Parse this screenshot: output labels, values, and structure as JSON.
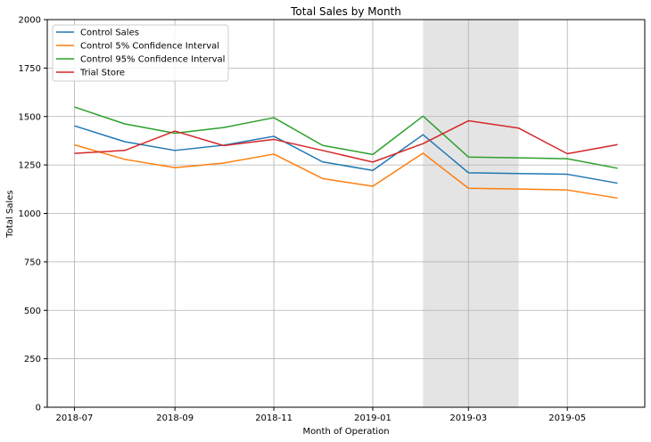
{
  "chart_data": {
    "type": "line",
    "title": "Total Sales by Month",
    "xlabel": "Month of Operation",
    "ylabel": "Total Sales",
    "x": [
      "2018-07-01",
      "2018-08-01",
      "2018-09-01",
      "2018-10-01",
      "2018-11-01",
      "2018-12-01",
      "2019-01-01",
      "2019-02-01",
      "2019-03-01",
      "2019-04-01",
      "2019-05-01",
      "2019-06-01"
    ],
    "x_ticks": [
      "2018-07",
      "2018-09",
      "2018-11",
      "2019-01",
      "2019-03",
      "2019-05"
    ],
    "ylim": [
      0,
      2000
    ],
    "y_ticks": [
      0,
      250,
      500,
      750,
      1000,
      1250,
      1500,
      1750,
      2000
    ],
    "grid": true,
    "legend_position": "top-left",
    "highlight_span": {
      "start": "2019-02-01",
      "end": "2019-04-01",
      "color": "#e4e4e4"
    },
    "series": [
      {
        "name": "Control Sales",
        "color": "#1f77b4",
        "values": [
          1452,
          1370,
          1325,
          1352,
          1398,
          1266,
          1222,
          1406,
          1210,
          1206,
          1202,
          1156
        ]
      },
      {
        "name": "Control 5% Confidence Interval",
        "color": "#ff7f0e",
        "values": [
          1354,
          1279,
          1236,
          1260,
          1306,
          1180,
          1140,
          1311,
          1130,
          1126,
          1121,
          1079
        ]
      },
      {
        "name": "Control 95% Confidence Interval",
        "color": "#2ca02c",
        "values": [
          1549,
          1462,
          1414,
          1443,
          1494,
          1351,
          1304,
          1502,
          1291,
          1287,
          1282,
          1233
        ]
      },
      {
        "name": "Trial Store",
        "color": "#d62728",
        "values": [
          1310,
          1325,
          1425,
          1350,
          1382,
          1325,
          1265,
          1360,
          1478,
          1440,
          1308,
          1355
        ]
      }
    ]
  }
}
